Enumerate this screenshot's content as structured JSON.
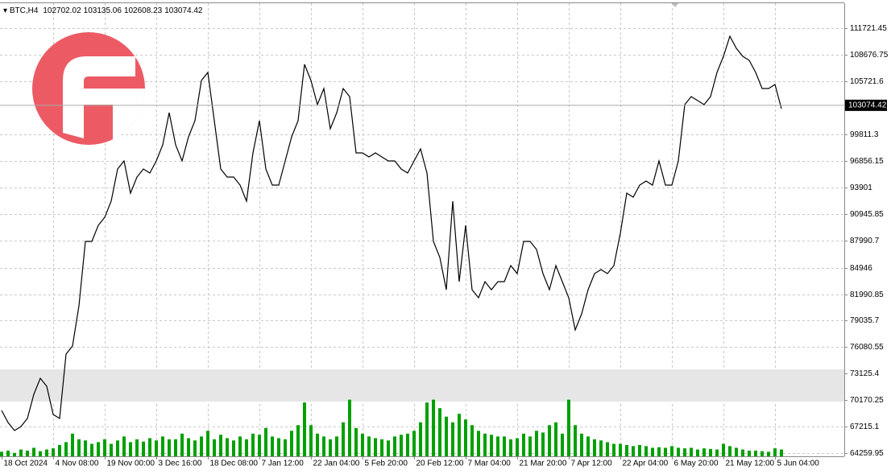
{
  "chart_data": {
    "type": "line",
    "symbol": "BTC,H4",
    "ohlc": [
      102702.02,
      103135.06,
      102608.23,
      103074.42
    ],
    "current_price": 103074.42,
    "highlight_range": [
      70008,
      73601
    ],
    "grid": true,
    "categories": [
      "18 Oct 2024",
      null,
      null,
      null,
      null,
      null,
      null,
      null,
      "4 Nov 08:00",
      null,
      null,
      null,
      null,
      null,
      null,
      null,
      "19 Nov 00:00",
      null,
      null,
      null,
      null,
      null,
      null,
      null,
      "3 Dec 16:00",
      null,
      null,
      null,
      null,
      null,
      null,
      null,
      "18 Dec 08:00",
      null,
      null,
      null,
      null,
      null,
      null,
      null,
      "7 Jan 12:00",
      null,
      null,
      null,
      null,
      null,
      null,
      null,
      "22 Jan 04:00",
      null,
      null,
      null,
      null,
      null,
      null,
      null,
      "5 Feb 20:00",
      null,
      null,
      null,
      null,
      null,
      null,
      null,
      "20 Feb 12:00",
      null,
      null,
      null,
      null,
      null,
      null,
      null,
      "7 Mar 04:00",
      null,
      null,
      null,
      null,
      null,
      null,
      null,
      "21 Mar 20:00",
      null,
      null,
      null,
      null,
      null,
      null,
      null,
      "7 Apr 12:00",
      null,
      null,
      null,
      null,
      null,
      null,
      null,
      "22 Apr 04:00",
      null,
      null,
      null,
      null,
      null,
      null,
      null,
      "6 May 20:00",
      null,
      null,
      null,
      null,
      null,
      null,
      null,
      "21 May 12:00",
      null,
      null,
      null,
      null,
      null,
      null,
      null,
      "5 Jun 04:00",
      null
    ],
    "series": [
      {
        "color": "#000000",
        "values": [
          69020,
          67673,
          66775,
          67224,
          68122,
          70817,
          72613,
          71715,
          68571,
          68122,
          75308,
          76206,
          80697,
          87883,
          87883,
          89679,
          90577,
          92374,
          95966,
          96865,
          93272,
          95068,
          95966,
          95517,
          96865,
          98661,
          102254,
          98661,
          96865,
          99559,
          101356,
          105847,
          106745,
          101356,
          95966,
          95068,
          95068,
          94170,
          92374,
          97763,
          101356,
          95966,
          94170,
          94170,
          96865,
          99559,
          101356,
          107643,
          105847,
          103152,
          104948,
          100457,
          102254,
          104948,
          104050,
          97763,
          97763,
          97314,
          97763,
          97314,
          96865,
          96865,
          95966,
          95517,
          96865,
          98212,
          95517,
          87883,
          86086,
          82493,
          92374,
          83392,
          89679,
          82493,
          81595,
          83392,
          82493,
          83392,
          83392,
          85188,
          84290,
          87883,
          87883,
          86984,
          84290,
          82493,
          85188,
          83392,
          81595,
          78002,
          79799,
          82493,
          84290,
          84739,
          84290,
          85188,
          88781,
          93272,
          92823,
          94170,
          94619,
          94170,
          96865,
          94170,
          94170,
          96865,
          103152,
          104050,
          103601,
          103152,
          104050,
          106745,
          108541,
          110787,
          109439,
          108541,
          108092,
          106745,
          104948,
          104948,
          105398,
          102703
        ]
      },
      {
        "color": "#00a000",
        "axis": "y2",
        "values": [
          8,
          10,
          6,
          12,
          10,
          15,
          9,
          12,
          14,
          20,
          25,
          40,
          30,
          28,
          22,
          25,
          30,
          22,
          28,
          35,
          25,
          30,
          26,
          32,
          28,
          35,
          30,
          30,
          40,
          32,
          28,
          35,
          45,
          30,
          38,
          32,
          28,
          35,
          30,
          40,
          38,
          50,
          35,
          32,
          30,
          45,
          55,
          95,
          55,
          40,
          35,
          30,
          35,
          60,
          100,
          50,
          40,
          35,
          32,
          30,
          28,
          35,
          38,
          40,
          45,
          60,
          95,
          100,
          85,
          70,
          60,
          75,
          65,
          55,
          45,
          40,
          38,
          35,
          35,
          30,
          32,
          40,
          35,
          45,
          42,
          55,
          60,
          40,
          100,
          55,
          40,
          35,
          30,
          28,
          25,
          22,
          22,
          20,
          18,
          20,
          18,
          15,
          16,
          15,
          18,
          15,
          14,
          15,
          12,
          14,
          13,
          12,
          22,
          18,
          15,
          12,
          10,
          10,
          9,
          8,
          14,
          12
        ]
      }
    ],
    "ylim": [
      63900,
      114470
    ],
    "yticks": [
      111721.45,
      108676.75,
      105721.6,
      99811.3,
      96856.15,
      93901,
      90945.85,
      87990.7,
      84946,
      81990.85,
      79035.7,
      76080.55,
      73125.4,
      70170.25,
      67215.1,
      64259.95
    ],
    "y2lim": [
      0,
      800
    ]
  }
}
